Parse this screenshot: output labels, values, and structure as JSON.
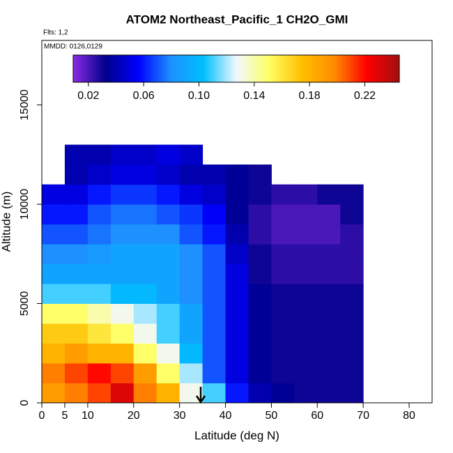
{
  "chart_data": {
    "type": "heatmap",
    "title": "ATOM2 Northeast_Pacific_1 CH2O_GMI",
    "subtitle": "Flts: 1,2",
    "annotation": "MMDD: 0126,0129",
    "x_label": "Latitude (deg N)",
    "y_label": "Altitude (m)",
    "xlim": [
      0,
      85
    ],
    "ylim": [
      0,
      18250
    ],
    "xticks": [
      0,
      5,
      10,
      20,
      30,
      40,
      50,
      60,
      70,
      80
    ],
    "yticks": [
      0,
      5000,
      10000,
      15000
    ],
    "x_bins": [
      0,
      5,
      10,
      15,
      20,
      25,
      30,
      35,
      40,
      45,
      50,
      55,
      60,
      65,
      70,
      75
    ],
    "y_bins": [
      0,
      1000,
      2000,
      3000,
      4000,
      5000,
      6000,
      7000,
      8000,
      9000,
      10000,
      11000,
      12000,
      13000
    ],
    "values": [
      [
        0.19,
        0.2,
        0.21,
        0.23,
        0.2,
        0.18,
        0.13,
        0.11,
        0.06,
        0.04,
        0.035,
        0.03,
        0.03,
        0.03,
        null
      ],
      [
        0.2,
        0.21,
        0.22,
        0.21,
        0.19,
        0.15,
        0.12,
        0.07,
        0.05,
        0.035,
        0.03,
        0.03,
        0.03,
        0.03,
        null
      ],
      [
        0.18,
        0.19,
        0.18,
        0.18,
        0.15,
        0.13,
        0.1,
        0.07,
        0.05,
        0.035,
        0.03,
        0.03,
        0.03,
        0.03,
        null
      ],
      [
        0.17,
        0.17,
        0.16,
        0.15,
        0.13,
        0.11,
        0.09,
        0.07,
        0.05,
        0.035,
        0.03,
        0.03,
        0.03,
        0.03,
        null
      ],
      [
        0.15,
        0.15,
        0.14,
        0.13,
        0.12,
        0.11,
        0.09,
        0.07,
        0.05,
        0.035,
        0.03,
        0.03,
        0.03,
        0.03,
        null
      ],
      [
        0.11,
        0.11,
        0.11,
        0.1,
        0.1,
        0.09,
        0.08,
        0.07,
        0.05,
        0.035,
        0.03,
        0.03,
        0.03,
        0.03,
        null
      ],
      [
        0.09,
        0.09,
        0.09,
        0.09,
        0.09,
        0.09,
        0.08,
        0.07,
        0.05,
        0.03,
        0.025,
        0.025,
        0.025,
        0.025,
        null
      ],
      [
        0.08,
        0.08,
        0.085,
        0.09,
        0.09,
        0.09,
        0.08,
        0.07,
        0.045,
        0.03,
        0.025,
        0.025,
        0.025,
        0.025,
        null
      ],
      [
        0.07,
        0.07,
        0.075,
        0.08,
        0.08,
        0.08,
        0.07,
        0.06,
        0.04,
        0.025,
        0.02,
        0.02,
        0.02,
        0.025,
        null
      ],
      [
        0.06,
        0.06,
        0.07,
        0.075,
        0.075,
        0.07,
        0.065,
        0.055,
        0.035,
        0.025,
        0.02,
        0.02,
        0.02,
        0.03,
        null
      ],
      [
        0.05,
        0.05,
        0.06,
        0.065,
        0.065,
        0.06,
        0.05,
        0.045,
        0.035,
        0.03,
        0.025,
        0.025,
        0.03,
        0.03,
        null
      ],
      [
        null,
        0.04,
        0.045,
        0.05,
        0.05,
        0.045,
        0.04,
        0.04,
        0.035,
        0.03,
        null,
        null,
        null,
        null,
        null
      ],
      [
        null,
        0.04,
        0.04,
        0.045,
        0.045,
        0.05,
        0.045,
        null,
        null,
        null,
        null,
        null,
        null,
        null,
        null
      ]
    ],
    "colorbar": {
      "lim": [
        0.009,
        0.245
      ],
      "ticks": [
        0.02,
        0.06,
        {
          "value": 0.1,
          "label": "0.10"
        },
        0.14,
        0.18,
        0.22
      ],
      "colors": [
        "#8a2be2",
        "#00008b",
        "#0000ff",
        "#1e90ff",
        "#00bfff",
        "#f0f8ff",
        "#ffff66",
        "#ffc000",
        "#ff8c00",
        "#ff0000",
        "#a01010"
      ]
    }
  }
}
